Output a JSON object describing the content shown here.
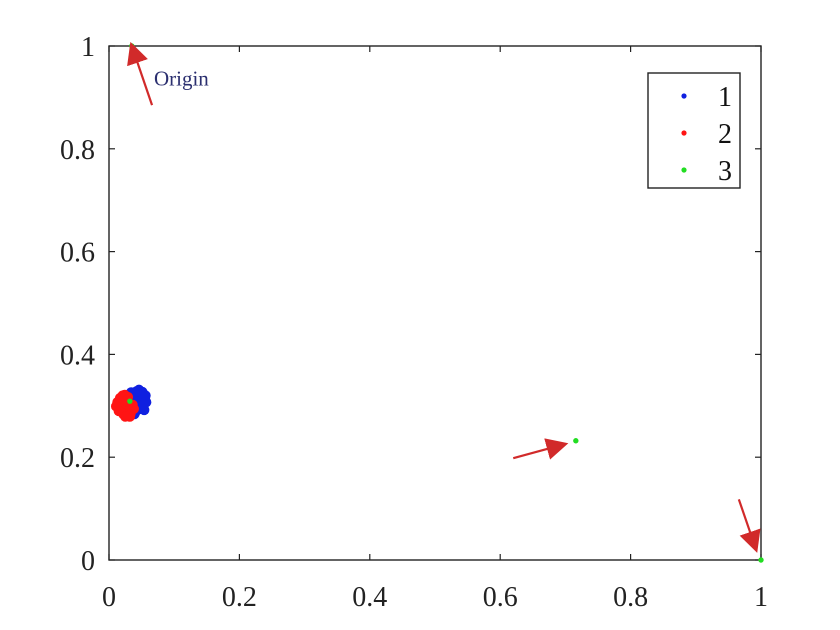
{
  "chart_data": {
    "type": "scatter",
    "title": "",
    "xlabel": "",
    "ylabel": "",
    "xlim": [
      0,
      1
    ],
    "ylim": [
      0,
      1
    ],
    "grid": false,
    "legend_position": "top-right",
    "x_ticks": [
      0,
      0.2,
      0.4,
      0.6,
      0.8,
      1
    ],
    "y_ticks": [
      0,
      0.2,
      0.4,
      0.6,
      0.8,
      1
    ],
    "x_tick_labels": [
      "0",
      "0.2",
      "0.4",
      "0.6",
      "0.8",
      "1"
    ],
    "y_tick_labels": [
      "0",
      "0.2",
      "0.4",
      "0.6",
      "0.8",
      "1"
    ],
    "series": [
      {
        "name": "1",
        "color": "#1020e0",
        "points": [
          [
            0.045,
            0.309
          ],
          [
            0.05,
            0.318
          ],
          [
            0.04,
            0.322
          ],
          [
            0.055,
            0.314
          ],
          [
            0.053,
            0.3
          ],
          [
            0.048,
            0.294
          ],
          [
            0.041,
            0.289
          ],
          [
            0.037,
            0.297
          ],
          [
            0.035,
            0.311
          ],
          [
            0.034,
            0.326
          ],
          [
            0.046,
            0.331
          ],
          [
            0.051,
            0.327
          ],
          [
            0.057,
            0.307
          ],
          [
            0.054,
            0.292
          ],
          [
            0.039,
            0.284
          ],
          [
            0.043,
            0.304
          ],
          [
            0.049,
            0.312
          ],
          [
            0.044,
            0.319
          ],
          [
            0.038,
            0.305
          ],
          [
            0.052,
            0.324
          ],
          [
            0.047,
            0.297
          ],
          [
            0.056,
            0.32
          ],
          [
            0.036,
            0.316
          ],
          [
            0.042,
            0.328
          ]
        ]
      },
      {
        "name": "2",
        "color": "#ff1414",
        "points": [
          [
            0.02,
            0.3
          ],
          [
            0.024,
            0.31
          ],
          [
            0.029,
            0.317
          ],
          [
            0.034,
            0.292
          ],
          [
            0.028,
            0.286
          ],
          [
            0.02,
            0.289
          ],
          [
            0.014,
            0.296
          ],
          [
            0.013,
            0.307
          ],
          [
            0.017,
            0.315
          ],
          [
            0.024,
            0.321
          ],
          [
            0.033,
            0.285
          ],
          [
            0.038,
            0.294
          ],
          [
            0.031,
            0.299
          ],
          [
            0.026,
            0.294
          ],
          [
            0.018,
            0.302
          ],
          [
            0.022,
            0.284
          ],
          [
            0.03,
            0.281
          ],
          [
            0.036,
            0.302
          ],
          [
            0.027,
            0.309
          ],
          [
            0.015,
            0.29
          ],
          [
            0.021,
            0.32
          ],
          [
            0.032,
            0.279
          ],
          [
            0.011,
            0.299
          ],
          [
            0.025,
            0.279
          ]
        ]
      },
      {
        "name": "3",
        "color": "#22dd22",
        "points": [
          [
            0.035,
            1.0
          ],
          [
            0.032,
            0.309
          ],
          [
            0.716,
            0.232
          ],
          [
            1.0,
            0.0
          ]
        ]
      }
    ],
    "annotations": [
      {
        "text": "Origin",
        "target": [
          0.035,
          1.0
        ],
        "tail": [
          0.066,
          0.885
        ],
        "label_anchor": [
          0.069,
          0.923
        ],
        "color": "#d12a2a"
      },
      {
        "text": "",
        "target": [
          0.698,
          0.225
        ],
        "tail": [
          0.62,
          0.198
        ],
        "color": "#d12a2a"
      },
      {
        "text": "",
        "target": [
          0.992,
          0.022
        ],
        "tail": [
          0.966,
          0.118
        ],
        "color": "#d12a2a"
      }
    ]
  }
}
